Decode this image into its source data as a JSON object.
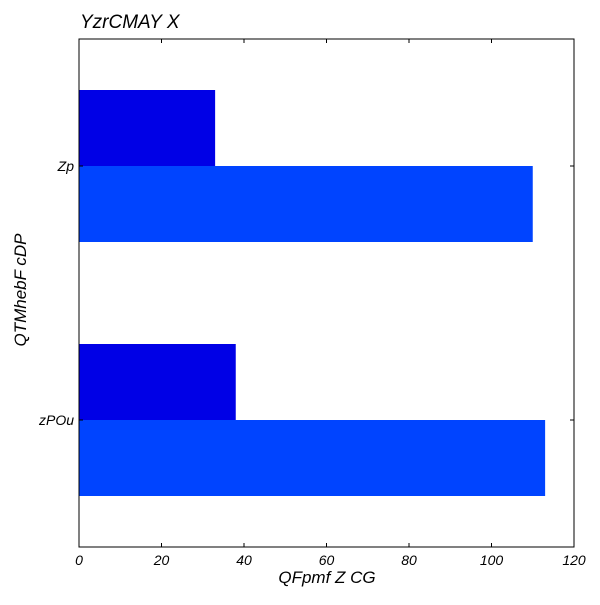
{
  "chart_data": {
    "type": "bar",
    "orientation": "horizontal",
    "title": "YzrCMAY X",
    "xlabel": "QFpmf Z CG",
    "ylabel": "QTMhebF cDP",
    "categories": [
      "Zp",
      "zPOu"
    ],
    "series": [
      {
        "values": [
          33,
          38
        ],
        "color": "#0000e6"
      },
      {
        "values": [
          110,
          113
        ],
        "color": "#0044ff"
      }
    ],
    "xlim": [
      0,
      120
    ],
    "xticks": [
      0,
      20,
      40,
      60,
      80,
      100,
      120
    ],
    "grid": false
  }
}
